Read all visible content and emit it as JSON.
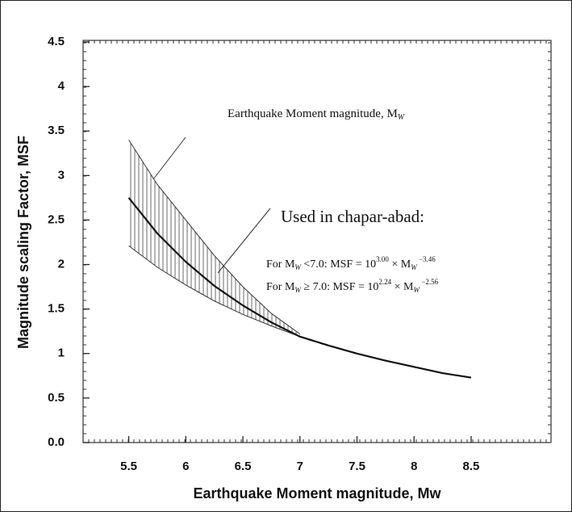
{
  "chart_data": {
    "type": "line",
    "xlabel": "Earthquake Moment magnitude, Mw",
    "ylabel": "Magnitude scaling Factor, MSF",
    "xlim": [
      5.1,
      9.2
    ],
    "ylim": [
      0,
      4.5
    ],
    "xticks": [
      5.5,
      6,
      6.5,
      7,
      7.5,
      8,
      8.5
    ],
    "yticks": [
      {
        "value": 0,
        "label": "0.0"
      },
      0.5,
      1,
      1.5,
      2,
      2.5,
      3,
      3.5,
      4,
      4.5
    ],
    "band": {
      "x": [
        5.5,
        5.75,
        6,
        6.25,
        6.5,
        6.75,
        7
      ],
      "upper": [
        3.4,
        2.9,
        2.5,
        2.1,
        1.75,
        1.45,
        1.22
      ],
      "lower": [
        2.21,
        1.97,
        1.77,
        1.59,
        1.44,
        1.31,
        1.19
      ]
    },
    "series": [
      {
        "color": "#111111",
        "x": [
          5.5,
          5.75,
          6,
          6.25,
          6.5,
          6.75,
          7,
          7.25,
          7.5,
          7.75,
          8,
          8.25,
          8.5
        ],
        "values": [
          2.75,
          2.35,
          2.03,
          1.76,
          1.54,
          1.35,
          1.19,
          1.09,
          1.0,
          0.92,
          0.85,
          0.78,
          0.73
        ]
      }
    ],
    "annotations": {
      "top_label": [
        "Earthquake Moment magnitude, M",
        "W"
      ],
      "used_label": "Used in chapar-abad:",
      "formula_1": [
        "For M",
        "W",
        "  <7.0: MSF = 10",
        "3.00",
        "  × M",
        "W",
        " −3.46"
      ],
      "formula_2": [
        "For M",
        "W",
        "  ≥ 7.0: MSF = 10",
        "2.24",
        "  × M",
        "W",
        " −2.56"
      ]
    }
  }
}
